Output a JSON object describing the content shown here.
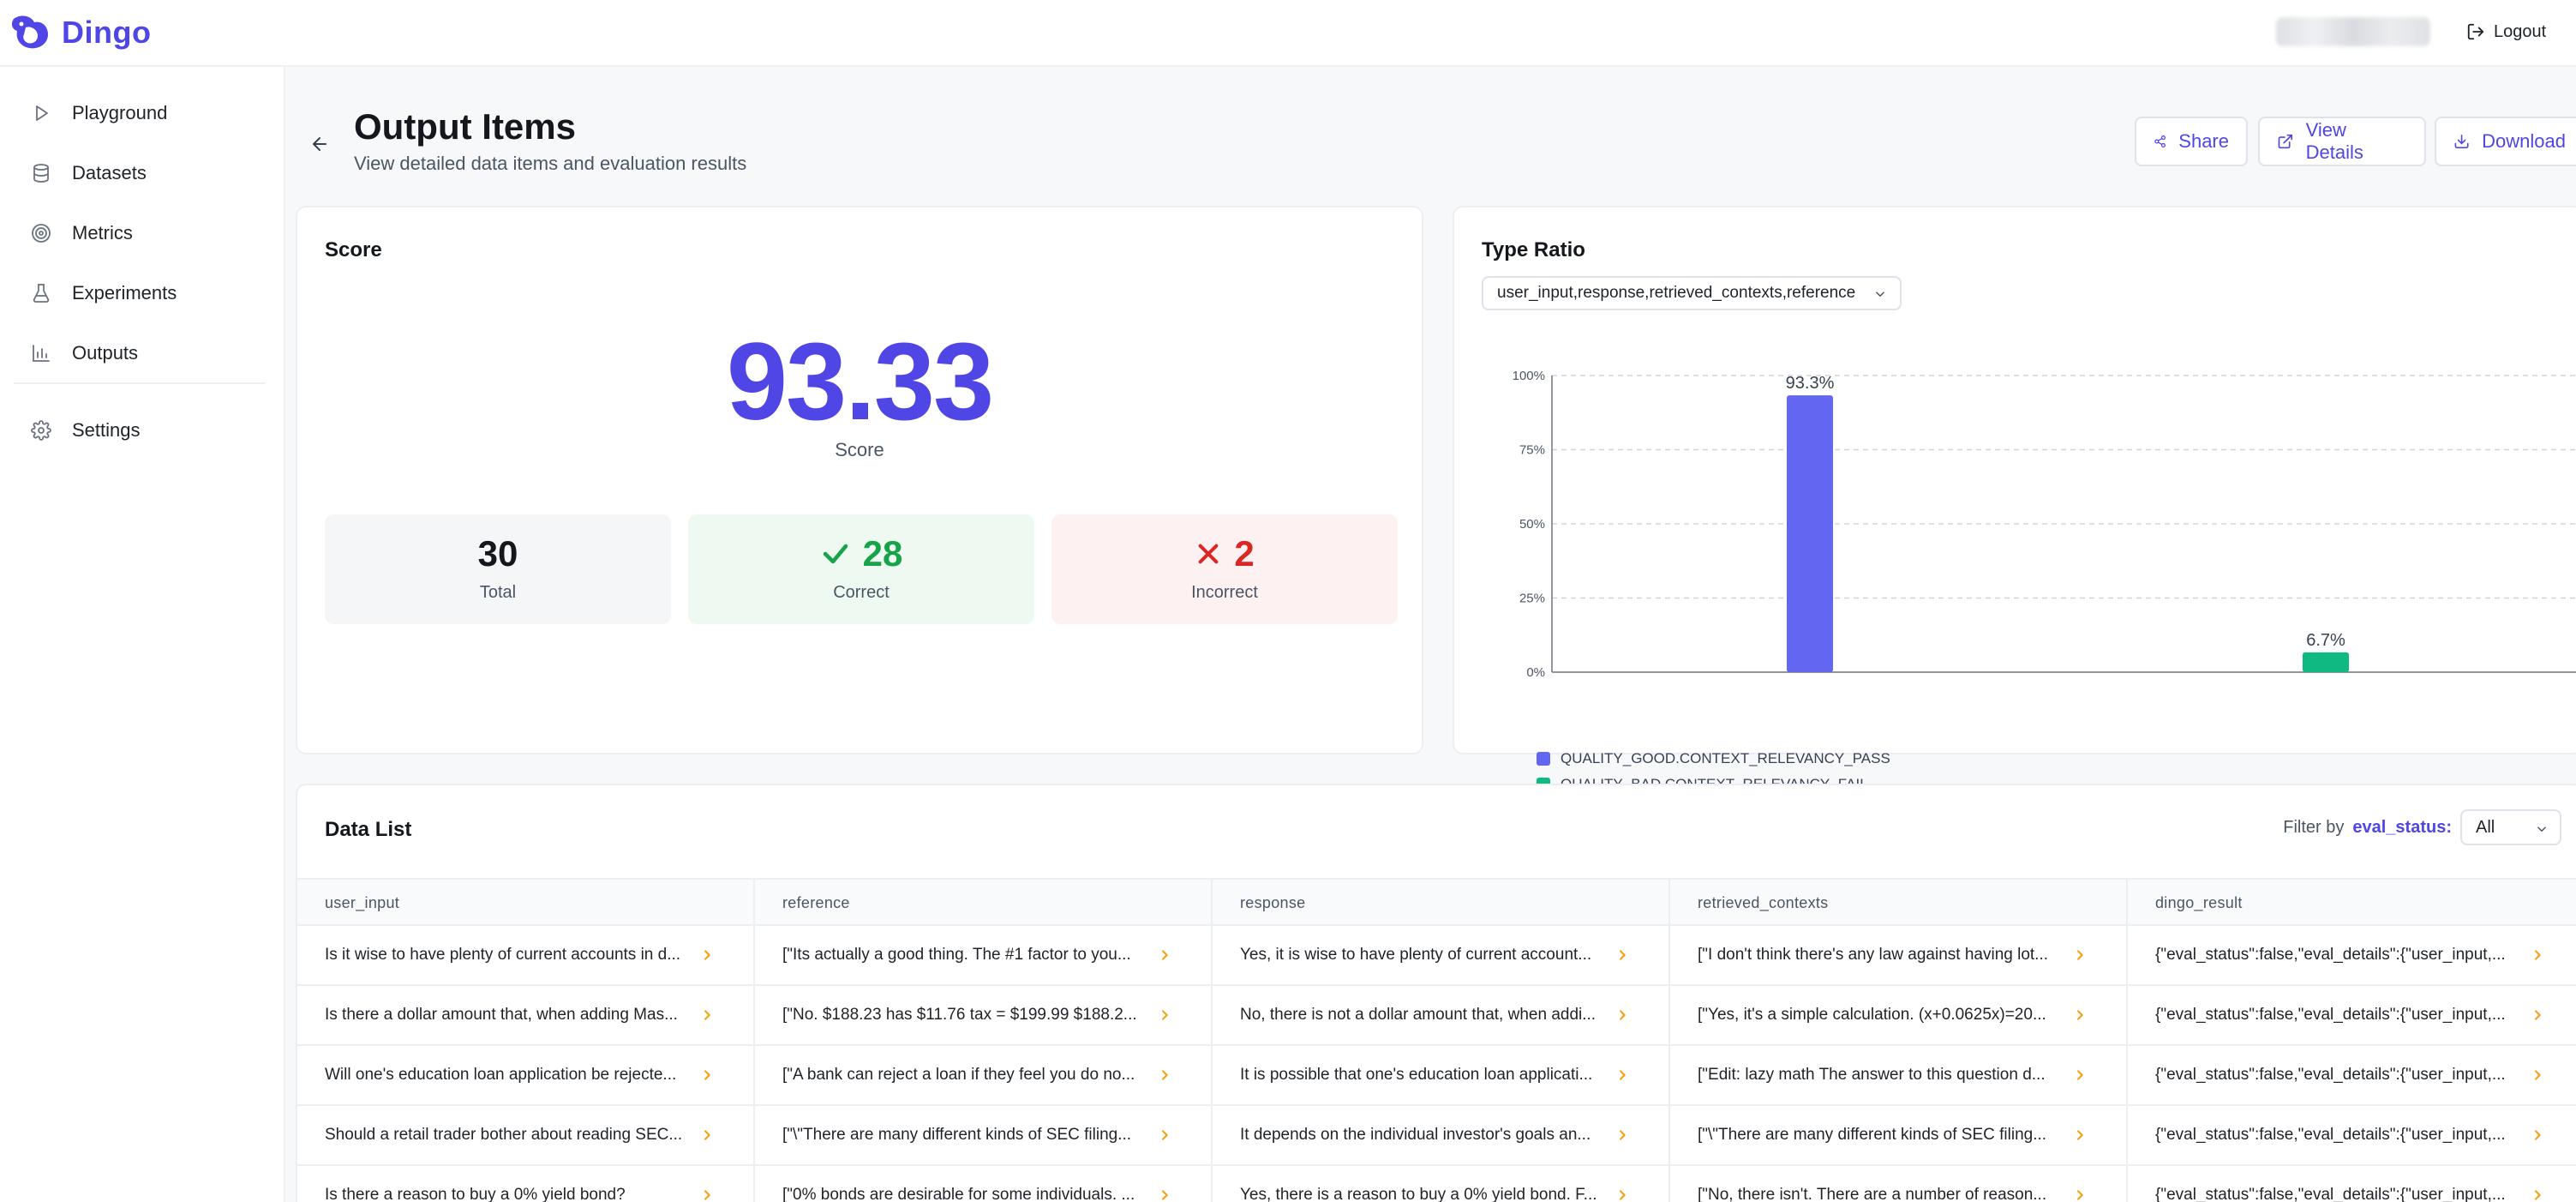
{
  "app": {
    "name": "Dingo",
    "logout_label": "Logout"
  },
  "sidebar": {
    "items": [
      {
        "label": "Playground",
        "icon": "play-icon"
      },
      {
        "label": "Datasets",
        "icon": "database-icon"
      },
      {
        "label": "Metrics",
        "icon": "target-icon"
      },
      {
        "label": "Experiments",
        "icon": "flask-icon"
      },
      {
        "label": "Outputs",
        "icon": "bar-chart-icon"
      },
      {
        "label": "Settings",
        "icon": "gear-icon"
      }
    ]
  },
  "header": {
    "title": "Output Items",
    "subtitle": "View detailed data items and evaluation results",
    "buttons": {
      "share": "Share",
      "view_details": "View Details",
      "download": "Download"
    }
  },
  "score_card": {
    "title": "Score",
    "score": "93.33",
    "score_label": "Score",
    "total": {
      "value": "30",
      "label": "Total"
    },
    "correct": {
      "value": "28",
      "label": "Correct"
    },
    "incorrect": {
      "value": "2",
      "label": "Incorrect"
    }
  },
  "type_ratio": {
    "title": "Type Ratio",
    "selected": "user_input,response,retrieved_contexts,reference"
  },
  "chart_data": {
    "type": "bar",
    "categories": [
      "QUALITY_GOOD.CONTEXT_RELEVANCY_PASS",
      "QUALITY_BAD.CONTEXT_RELEVANCY_FAIL"
    ],
    "values": [
      93.3,
      6.7
    ],
    "data_labels": [
      "93.3%",
      "6.7%"
    ],
    "colors": [
      "#6366f1",
      "#10b981"
    ],
    "ylim": [
      0,
      100
    ],
    "yticks": [
      "0%",
      "25%",
      "50%",
      "75%",
      "100%"
    ],
    "grid": true,
    "legend": "bottom-left"
  },
  "data_list": {
    "title": "Data List",
    "filter_prefix": "Filter by",
    "filter_key": "eval_status:",
    "filter_value": "All",
    "columns": [
      "user_input",
      "reference",
      "response",
      "retrieved_contexts",
      "dingo_result"
    ],
    "rows": [
      [
        "Is it wise to have plenty of current accounts in d...",
        "[\"Its actually a good thing. The #1 factor to you...",
        "Yes, it is wise to have plenty of current account...",
        "[\"I don't think there's any law against having lot...",
        "{\"eval_status\":false,\"eval_details\":{\"user_input,..."
      ],
      [
        "Is there a dollar amount that, when adding Mas...",
        "[\"No. $188.23 has $11.76 tax = $199.99 $188.2...",
        "No, there is not a dollar amount that, when addi...",
        "[\"Yes, it's a simple calculation. (x+0.0625x)=20...",
        "{\"eval_status\":false,\"eval_details\":{\"user_input,..."
      ],
      [
        "Will one's education loan application be rejecte...",
        "[\"A bank can reject a loan if they feel you do no...",
        "It is possible that one's education loan applicati...",
        "[\"Edit: lazy math The answer to this question d...",
        "{\"eval_status\":false,\"eval_details\":{\"user_input,..."
      ],
      [
        "Should a retail trader bother about reading SEC...",
        "[\"\\\"There are many different kinds of SEC filing...",
        "It depends on the individual investor's goals an...",
        "[\"\\\"There are many different kinds of SEC filing...",
        "{\"eval_status\":false,\"eval_details\":{\"user_input,..."
      ],
      [
        "Is there a reason to buy a 0% yield bond?",
        "[\"0% bonds are desirable for some individuals. ...",
        "Yes, there is a reason to buy a 0% yield bond. F...",
        "[\"No, there isn't. There are a number of reason...",
        "{\"eval_status\":false,\"eval_details\":{\"user_input,..."
      ]
    ]
  }
}
